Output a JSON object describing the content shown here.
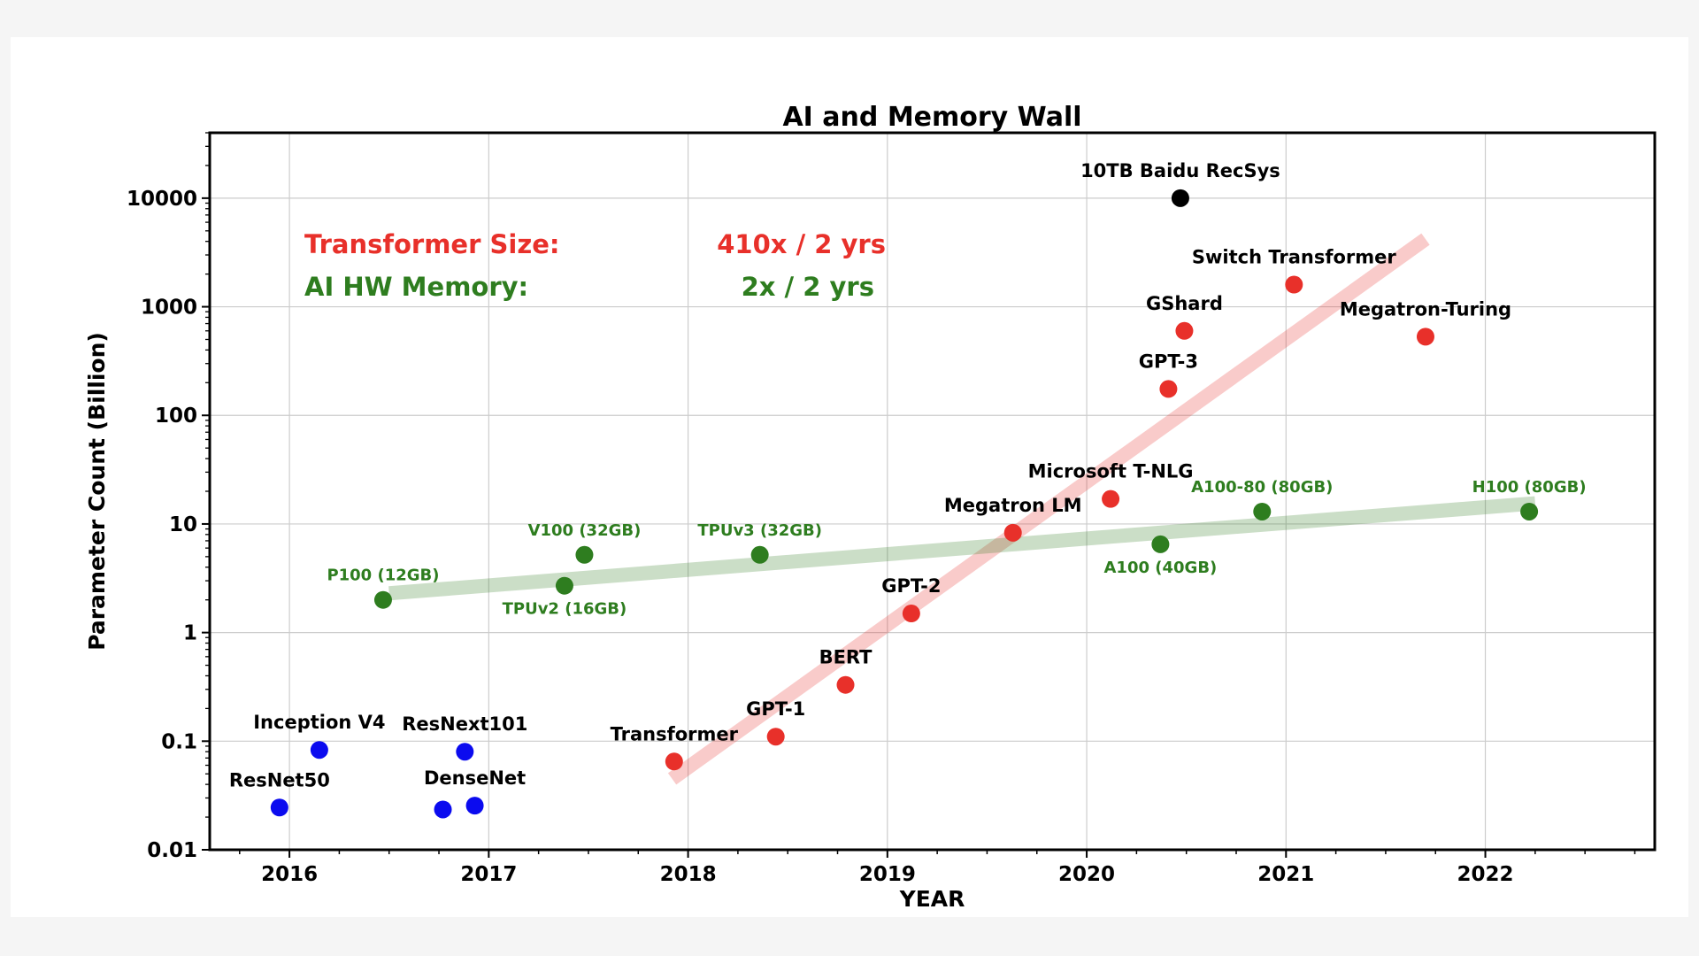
{
  "chart_data": {
    "type": "scatter",
    "title": "AI and Memory Wall",
    "xlabel": "YEAR",
    "ylabel": "Parameter Count (Billion)",
    "xlim": [
      2015.6,
      2022.85
    ],
    "ylim": [
      0.01,
      40000
    ],
    "yscale": "log",
    "grid": true,
    "x_ticks": [
      {
        "value": 2016,
        "label": "2016"
      },
      {
        "value": 2017,
        "label": "2017"
      },
      {
        "value": 2018,
        "label": "2018"
      },
      {
        "value": 2019,
        "label": "2019"
      },
      {
        "value": 2020,
        "label": "2020"
      },
      {
        "value": 2021,
        "label": "2021"
      },
      {
        "value": 2022,
        "label": "2022"
      }
    ],
    "y_ticks": [
      {
        "value": 0.01,
        "label": "0.01"
      },
      {
        "value": 0.1,
        "label": "0.1"
      },
      {
        "value": 1,
        "label": "1"
      },
      {
        "value": 10,
        "label": "10"
      },
      {
        "value": 100,
        "label": "100"
      },
      {
        "value": 1000,
        "label": "1000"
      },
      {
        "value": 10000,
        "label": "10000"
      }
    ],
    "annotations": [
      {
        "text": "Transformer Size:",
        "color": "#e8302a"
      },
      {
        "text": "410x / 2 yrs",
        "color": "#e8302a"
      },
      {
        "text": "AI HW Memory:",
        "color": "#2e7d1f"
      },
      {
        "text": "2x / 2 yrs",
        "color": "#2e7d1f"
      }
    ],
    "trend_lines": [
      {
        "color": "#e8302a",
        "x0": 2017.92,
        "y0": 0.045,
        "x1": 2021.7,
        "y1": 4200
      },
      {
        "color": "#2e7d1f",
        "x0": 2016.5,
        "y0": 2.3,
        "x1": 2022.25,
        "y1": 15.5
      }
    ],
    "series": [
      {
        "color": "#0b0bef",
        "label_color": "#000000",
        "points": [
          {
            "x": 2015.95,
            "y": 0.0245,
            "label": "ResNet50"
          },
          {
            "x": 2016.15,
            "y": 0.083,
            "label": "Inception V4"
          },
          {
            "x": 2016.77,
            "y": 0.0235,
            "label": ""
          },
          {
            "x": 2016.88,
            "y": 0.08,
            "label": "ResNext101"
          },
          {
            "x": 2016.93,
            "y": 0.0255,
            "label": "DenseNet"
          }
        ]
      },
      {
        "color": "#e8302a",
        "label_color": "#000000",
        "points": [
          {
            "x": 2017.93,
            "y": 0.065,
            "label": "Transformer"
          },
          {
            "x": 2018.44,
            "y": 0.11,
            "label": "GPT-1"
          },
          {
            "x": 2018.79,
            "y": 0.33,
            "label": "BERT"
          },
          {
            "x": 2019.12,
            "y": 1.5,
            "label": "GPT-2"
          },
          {
            "x": 2019.63,
            "y": 8.3,
            "label": "Megatron LM"
          },
          {
            "x": 2020.12,
            "y": 17,
            "label": "Microsoft T-NLG"
          },
          {
            "x": 2020.41,
            "y": 175,
            "label": "GPT-3"
          },
          {
            "x": 2020.49,
            "y": 600,
            "label": "GShard"
          },
          {
            "x": 2021.04,
            "y": 1600,
            "label": "Switch Transformer"
          },
          {
            "x": 2021.7,
            "y": 530,
            "label": "Megatron-Turing"
          }
        ]
      },
      {
        "color": "#2e7d1f",
        "label_color": "#2e7d1f",
        "points": [
          {
            "x": 2016.47,
            "y": 2.0,
            "label": "P100 (12GB)"
          },
          {
            "x": 2017.38,
            "y": 2.7,
            "label": "TPUv2 (16GB)"
          },
          {
            "x": 2017.48,
            "y": 5.2,
            "label": "V100 (32GB)"
          },
          {
            "x": 2018.36,
            "y": 5.2,
            "label": "TPUv3 (32GB)"
          },
          {
            "x": 2020.37,
            "y": 6.5,
            "label": "A100 (40GB)"
          },
          {
            "x": 2020.88,
            "y": 13,
            "label": "A100-80 (80GB)"
          },
          {
            "x": 2022.22,
            "y": 13,
            "label": "H100 (80GB)"
          }
        ]
      },
      {
        "color": "#000000",
        "label_color": "#000000",
        "points": [
          {
            "x": 2020.47,
            "y": 10000,
            "label": "10TB Baidu RecSys"
          }
        ]
      }
    ]
  }
}
